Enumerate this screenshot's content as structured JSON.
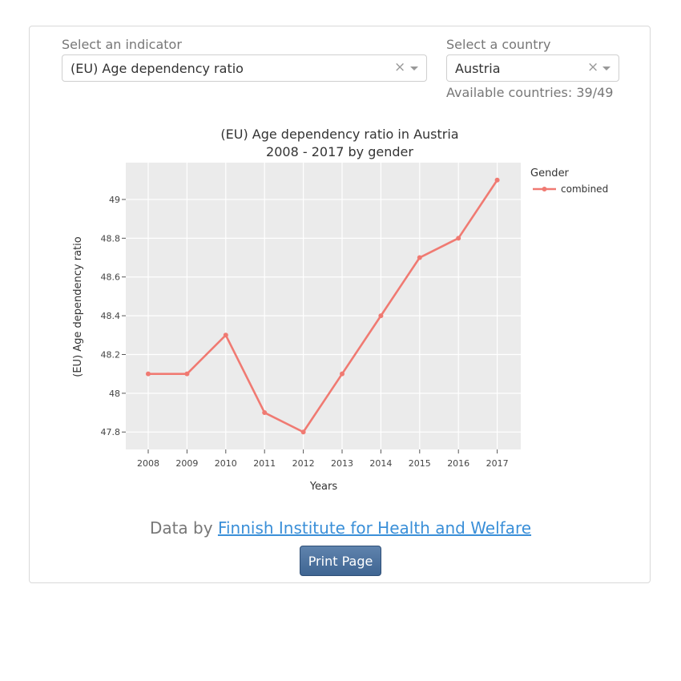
{
  "indicator": {
    "label": "Select an indicator",
    "value": "(EU) Age dependency ratio",
    "clear_glyph": "×",
    "icons": [
      "clear-icon",
      "chevron-down-icon"
    ]
  },
  "country": {
    "label": "Select a country",
    "value": "Austria",
    "clear_glyph": "×",
    "available": "Available countries: 39/49"
  },
  "chart_data": {
    "type": "line",
    "title": "(EU) Age dependency ratio in Austria",
    "subtitle": "2008 - 2017 by gender",
    "xlabel": "Years",
    "ylabel": "(EU) Age dependency ratio",
    "x": [
      "2008",
      "2009",
      "2010",
      "2011",
      "2012",
      "2013",
      "2014",
      "2015",
      "2016",
      "2017"
    ],
    "yticks": [
      "47.8",
      "48",
      "48.2",
      "48.4",
      "48.6",
      "48.8",
      "49"
    ],
    "ylim": [
      47.71,
      49.19
    ],
    "legend_title": "Gender",
    "legend_position": "top-right",
    "grid": true,
    "series": [
      {
        "name": "combined",
        "color": "#f07a72",
        "values": [
          48.1,
          48.1,
          48.3,
          47.9,
          47.8,
          48.1,
          48.4,
          48.7,
          48.8,
          49.1
        ]
      }
    ]
  },
  "footer": {
    "credit_prefix": "Data by ",
    "credit_link": "Finnish Institute for Health and Welfare",
    "print_label": "Print Page"
  }
}
